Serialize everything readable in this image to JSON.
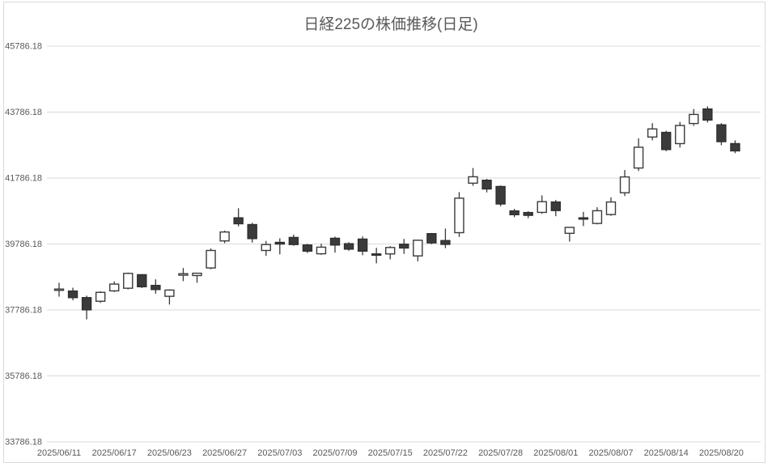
{
  "title": "日経225の株価推移(日足)",
  "colors": {
    "title_text": "#595959",
    "axis_text": "#595959",
    "gridline": "#d9d9d9",
    "chart_border": "#d9d9d9",
    "wick": "#3b3b3b",
    "candle_up_fill": "#ffffff",
    "candle_up_stroke": "#3b3b3b",
    "candle_down_fill": "#3b3b3b",
    "candle_down_stroke": "#2f2f2f"
  },
  "chart_data": {
    "type": "candlestick",
    "title": "日経225の株価推移(日足)",
    "xlabel": "",
    "ylabel": "",
    "grid": true,
    "legend": "none",
    "y_axis": {
      "min": 33786.18,
      "max": 45786.18,
      "step": 2000,
      "tick_values": [
        45786.18,
        43786.18,
        41786.18,
        39786.18,
        37786.18,
        35786.18,
        33786.18
      ],
      "tick_labels": [
        "45786.18",
        "43786.18",
        "41786.18",
        "39786.18",
        "37786.18",
        "35786.18",
        "33786.18"
      ]
    },
    "x_axis": {
      "label_every_n_candles": 4,
      "tick_labels": [
        "2025/06/11",
        "2025/06/17",
        "2025/06/23",
        "2025/06/27",
        "2025/07/03",
        "2025/07/09",
        "2025/07/15",
        "2025/07/22",
        "2025/07/28",
        "2025/08/01",
        "2025/08/07",
        "2025/08/14",
        "2025/08/20"
      ]
    },
    "candles": [
      {
        "date": "2025/06/11",
        "open": 38405,
        "high": 38610,
        "low": 38190,
        "close": 38420
      },
      {
        "date": "2025/06/12",
        "open": 38360,
        "high": 38460,
        "low": 38080,
        "close": 38160
      },
      {
        "date": "2025/06/13",
        "open": 38160,
        "high": 38220,
        "low": 37500,
        "close": 37790
      },
      {
        "date": "2025/06/16",
        "open": 38050,
        "high": 38350,
        "low": 38000,
        "close": 38320
      },
      {
        "date": "2025/06/17",
        "open": 38365,
        "high": 38650,
        "low": 38330,
        "close": 38570
      },
      {
        "date": "2025/06/18",
        "open": 38445,
        "high": 38920,
        "low": 38410,
        "close": 38895
      },
      {
        "date": "2025/06/19",
        "open": 38855,
        "high": 38870,
        "low": 38450,
        "close": 38490
      },
      {
        "date": "2025/06/20",
        "open": 38530,
        "high": 38715,
        "low": 38280,
        "close": 38405
      },
      {
        "date": "2025/06/23",
        "open": 38200,
        "high": 38410,
        "low": 37950,
        "close": 38390
      },
      {
        "date": "2025/06/24",
        "open": 38840,
        "high": 39060,
        "low": 38660,
        "close": 38885
      },
      {
        "date": "2025/06/25",
        "open": 38830,
        "high": 38910,
        "low": 38610,
        "close": 38900
      },
      {
        "date": "2025/06/26",
        "open": 39060,
        "high": 39650,
        "low": 39020,
        "close": 39590
      },
      {
        "date": "2025/06/27",
        "open": 39880,
        "high": 40190,
        "low": 39810,
        "close": 40150
      },
      {
        "date": "2025/06/30",
        "open": 40580,
        "high": 40870,
        "low": 40320,
        "close": 40400
      },
      {
        "date": "2025/07/01",
        "open": 40375,
        "high": 40430,
        "low": 39830,
        "close": 39950
      },
      {
        "date": "2025/07/02",
        "open": 39590,
        "high": 39880,
        "low": 39425,
        "close": 39770
      },
      {
        "date": "2025/07/03",
        "open": 39835,
        "high": 39960,
        "low": 39470,
        "close": 39785
      },
      {
        "date": "2025/07/04",
        "open": 39985,
        "high": 40070,
        "low": 39735,
        "close": 39770
      },
      {
        "date": "2025/07/07",
        "open": 39755,
        "high": 39790,
        "low": 39510,
        "close": 39570
      },
      {
        "date": "2025/07/08",
        "open": 39490,
        "high": 39795,
        "low": 39460,
        "close": 39690
      },
      {
        "date": "2025/07/09",
        "open": 39960,
        "high": 40010,
        "low": 39525,
        "close": 39755
      },
      {
        "date": "2025/07/10",
        "open": 39795,
        "high": 39840,
        "low": 39580,
        "close": 39630
      },
      {
        "date": "2025/07/11",
        "open": 39935,
        "high": 40015,
        "low": 39445,
        "close": 39570
      },
      {
        "date": "2025/07/14",
        "open": 39485,
        "high": 39670,
        "low": 39200,
        "close": 39460
      },
      {
        "date": "2025/07/15",
        "open": 39485,
        "high": 39720,
        "low": 39320,
        "close": 39680
      },
      {
        "date": "2025/07/16",
        "open": 39780,
        "high": 39940,
        "low": 39485,
        "close": 39665
      },
      {
        "date": "2025/07/17",
        "open": 39425,
        "high": 39920,
        "low": 39260,
        "close": 39900
      },
      {
        "date": "2025/07/18",
        "open": 40100,
        "high": 40120,
        "low": 39780,
        "close": 39820
      },
      {
        "date": "2025/07/22",
        "open": 39890,
        "high": 40255,
        "low": 39660,
        "close": 39775
      },
      {
        "date": "2025/07/23",
        "open": 40130,
        "high": 41360,
        "low": 40000,
        "close": 41175
      },
      {
        "date": "2025/07/24",
        "open": 41630,
        "high": 42090,
        "low": 41550,
        "close": 41825
      },
      {
        "date": "2025/07/25",
        "open": 41720,
        "high": 41760,
        "low": 41350,
        "close": 41455
      },
      {
        "date": "2025/07/28",
        "open": 41530,
        "high": 41560,
        "low": 40930,
        "close": 41000
      },
      {
        "date": "2025/07/29",
        "open": 40790,
        "high": 40850,
        "low": 40600,
        "close": 40675
      },
      {
        "date": "2025/07/30",
        "open": 40740,
        "high": 40780,
        "low": 40570,
        "close": 40655
      },
      {
        "date": "2025/07/31",
        "open": 40745,
        "high": 41260,
        "low": 40700,
        "close": 41070
      },
      {
        "date": "2025/08/01",
        "open": 41060,
        "high": 41120,
        "low": 40630,
        "close": 40800
      },
      {
        "date": "2025/08/04",
        "open": 40110,
        "high": 40300,
        "low": 39860,
        "close": 40290
      },
      {
        "date": "2025/08/05",
        "open": 40580,
        "high": 40760,
        "low": 40330,
        "close": 40550
      },
      {
        "date": "2025/08/06",
        "open": 40410,
        "high": 40900,
        "low": 40380,
        "close": 40795
      },
      {
        "date": "2025/08/07",
        "open": 40680,
        "high": 41200,
        "low": 40640,
        "close": 41060
      },
      {
        "date": "2025/08/08",
        "open": 41340,
        "high": 42030,
        "low": 41240,
        "close": 41820
      },
      {
        "date": "2025/08/12",
        "open": 42090,
        "high": 42990,
        "low": 42000,
        "close": 42720
      },
      {
        "date": "2025/08/13",
        "open": 43030,
        "high": 43450,
        "low": 42930,
        "close": 43275
      },
      {
        "date": "2025/08/14",
        "open": 43170,
        "high": 43220,
        "low": 42600,
        "close": 42650
      },
      {
        "date": "2025/08/15",
        "open": 42830,
        "high": 43490,
        "low": 42710,
        "close": 43380
      },
      {
        "date": "2025/08/18",
        "open": 43440,
        "high": 43880,
        "low": 43370,
        "close": 43715
      },
      {
        "date": "2025/08/19",
        "open": 43880,
        "high": 43960,
        "low": 43470,
        "close": 43545
      },
      {
        "date": "2025/08/20",
        "open": 43400,
        "high": 43450,
        "low": 42780,
        "close": 42890
      },
      {
        "date": "2025/08/21",
        "open": 42830,
        "high": 42930,
        "low": 42540,
        "close": 42610
      }
    ]
  }
}
